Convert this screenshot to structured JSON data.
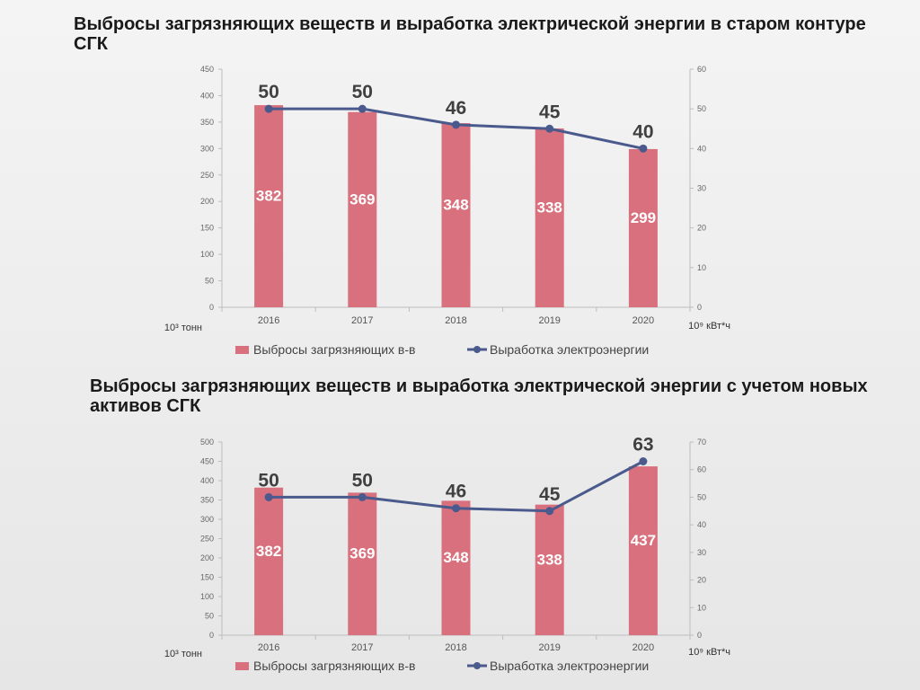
{
  "chart_data": [
    {
      "type": "bar+line",
      "title": "Выбросы загрязняющих веществ и выработка электрической энергии в старом контуре СГК",
      "categories": [
        "2016",
        "2017",
        "2018",
        "2019",
        "2020"
      ],
      "series": [
        {
          "name": "Выбросы загрязняющих в-в",
          "kind": "bar",
          "axis": "left",
          "values": [
            382,
            369,
            348,
            338,
            299
          ],
          "color": "#d9707d"
        },
        {
          "name": "Выработка электроэнергии",
          "kind": "line",
          "axis": "right",
          "values": [
            50,
            50,
            46,
            45,
            40
          ],
          "color": "#4a5a8c"
        }
      ],
      "y_left": {
        "unit": "10³ тонн",
        "min": 0,
        "max": 450,
        "step": 50
      },
      "y_right": {
        "unit": "10⁹ кВт*ч",
        "min": 0,
        "max": 60,
        "step": 10
      },
      "legend": "bottom",
      "grid": false
    },
    {
      "type": "bar+line",
      "title": "Выбросы загрязняющих веществ и выработка электрической энергии с учетом новых активов СГК",
      "categories": [
        "2016",
        "2017",
        "2018",
        "2019",
        "2020"
      ],
      "series": [
        {
          "name": "Выбросы загрязняющих в-в",
          "kind": "bar",
          "axis": "left",
          "values": [
            382,
            369,
            348,
            338,
            437
          ],
          "color": "#d9707d"
        },
        {
          "name": "Выработка электроэнергии",
          "kind": "line",
          "axis": "right",
          "values": [
            50,
            50,
            46,
            45,
            63
          ],
          "color": "#4a5a8c"
        }
      ],
      "y_left": {
        "unit": "10³ тонн",
        "min": 0,
        "max": 500,
        "step": 50
      },
      "y_right": {
        "unit": "10⁹ кВт*ч",
        "min": 0,
        "max": 70,
        "step": 10
      },
      "legend": "bottom",
      "grid": false
    }
  ]
}
